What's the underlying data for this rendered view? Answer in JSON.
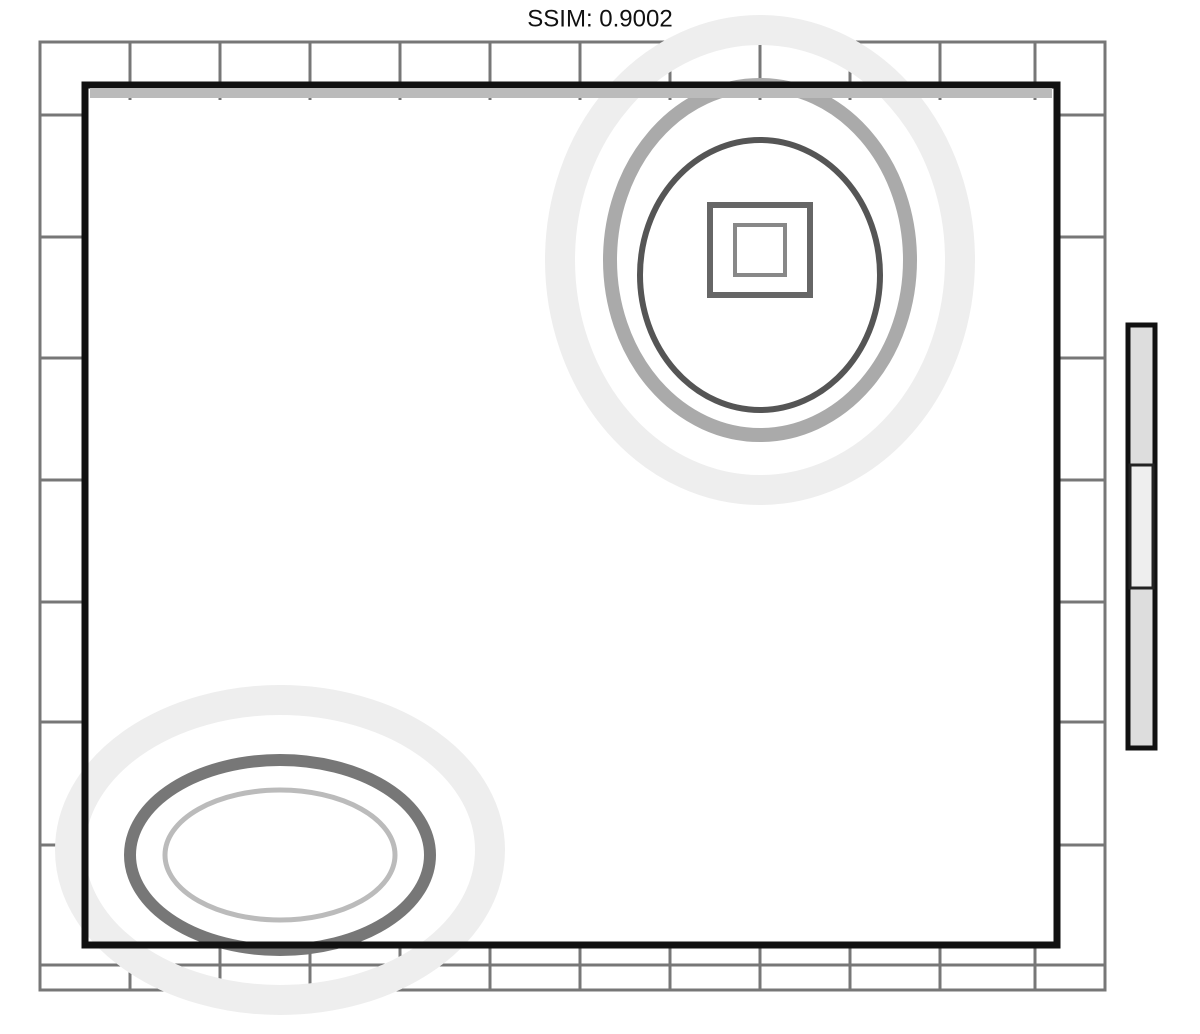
{
  "chart_data": {
    "type": "heatmap",
    "title": "SSIM: 0.9002"
  }
}
